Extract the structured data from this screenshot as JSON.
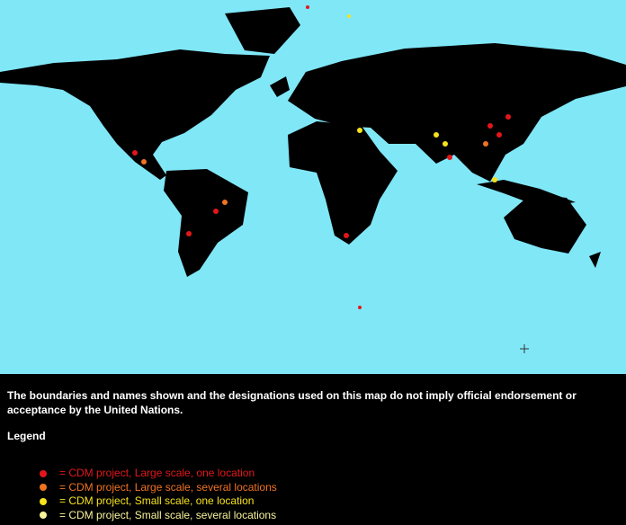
{
  "disclaimer": "The boundaries and names shown and the designations used on this map do not imply official endorsement or acceptance by the United Nations.",
  "legend": {
    "title": "Legend",
    "items": [
      {
        "label": "= CDM project, Large scale, one location",
        "color": "#e3171b"
      },
      {
        "label": "= CDM project, Large scale, several locations",
        "color": "#f07322"
      },
      {
        "label": "= CDM project, Small scale, one location",
        "color": "#f6e21c"
      },
      {
        "label": "= CDM project, Small scale, several locations",
        "color": "#f8f39c"
      }
    ]
  }
}
